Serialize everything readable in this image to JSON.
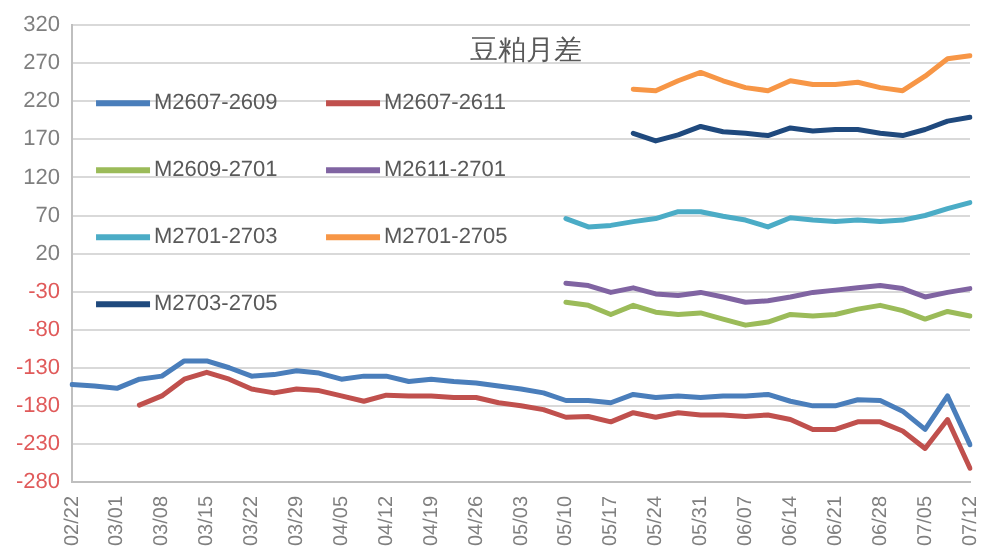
{
  "chart_data": {
    "type": "line",
    "title": "豆粕月差",
    "categories": [
      "02/22",
      null,
      "03/01",
      null,
      "03/08",
      null,
      "03/15",
      null,
      "03/22",
      null,
      "03/29",
      null,
      "04/05",
      null,
      "04/12",
      null,
      "04/19",
      null,
      "04/26",
      null,
      "05/03",
      null,
      "05/10",
      null,
      "05/17",
      null,
      "05/24",
      null,
      "05/31",
      null,
      "06/07",
      null,
      "06/14",
      null,
      "06/21",
      null,
      "06/28",
      null,
      "07/05",
      null,
      "07/12"
    ],
    "series": [
      {
        "name": "M2607-2609",
        "color": "#4a7ebb",
        "values": [
          -152,
          -154,
          -157,
          -145,
          -141,
          -121,
          -121,
          -130,
          -141,
          -139,
          -134,
          -137,
          -145,
          -141,
          -141,
          -148,
          -145,
          -148,
          -150,
          -154,
          -158,
          -163,
          -173,
          -173,
          -176,
          -165,
          -169,
          -167,
          -169,
          -167,
          -167,
          -165,
          -174,
          -180,
          -180,
          -172,
          -173,
          -187,
          -211,
          -167,
          -231
        ]
      },
      {
        "name": "M2607-2611",
        "color": "#c0504d",
        "values": [
          null,
          null,
          null,
          -179,
          -167,
          -145,
          -136,
          -145,
          -158,
          -163,
          -158,
          -160,
          -167,
          -174,
          -166,
          -167,
          -167,
          -169,
          -169,
          -176,
          -180,
          -185,
          -195,
          -194,
          -201,
          -189,
          -195,
          -189,
          -192,
          -192,
          -194,
          -192,
          -198,
          -211,
          -211,
          -201,
          -201,
          -213,
          -236,
          -198,
          -262
        ]
      },
      {
        "name": "M2609-2701",
        "color": "#9bbb59",
        "values": [
          null,
          null,
          null,
          null,
          null,
          null,
          null,
          null,
          null,
          null,
          null,
          null,
          null,
          null,
          null,
          null,
          null,
          null,
          null,
          null,
          null,
          null,
          -44,
          -48,
          -60,
          -48,
          -57,
          -60,
          -58,
          -66,
          -74,
          -70,
          -60,
          -62,
          -60,
          -53,
          -48,
          -55,
          -66,
          -56,
          -62
        ]
      },
      {
        "name": "M2611-2701",
        "color": "#8064a2",
        "values": [
          null,
          null,
          null,
          null,
          null,
          null,
          null,
          null,
          null,
          null,
          null,
          null,
          null,
          null,
          null,
          null,
          null,
          null,
          null,
          null,
          null,
          null,
          -19,
          -22,
          -31,
          -25,
          -33,
          -35,
          -31,
          -37,
          -44,
          -42,
          -37,
          -31,
          -28,
          -25,
          -22,
          -26,
          -37,
          -31,
          -26
        ]
      },
      {
        "name": "M2701-2703",
        "color": "#4bacc6",
        "values": [
          null,
          null,
          null,
          null,
          null,
          null,
          null,
          null,
          null,
          null,
          null,
          null,
          null,
          null,
          null,
          null,
          null,
          null,
          null,
          null,
          null,
          null,
          66,
          55,
          57,
          62,
          66,
          75,
          75,
          69,
          64,
          55,
          67,
          64,
          62,
          64,
          62,
          64,
          70,
          79,
          87
        ]
      },
      {
        "name": "M2701-2705",
        "color": "#f79646",
        "values": [
          null,
          null,
          null,
          null,
          null,
          null,
          null,
          null,
          null,
          null,
          null,
          null,
          null,
          null,
          null,
          null,
          null,
          null,
          null,
          null,
          null,
          null,
          null,
          null,
          null,
          236,
          234,
          247,
          258,
          247,
          238,
          234,
          247,
          242,
          242,
          245,
          238,
          234,
          253,
          276,
          280
        ]
      },
      {
        "name": "M2703-2705",
        "color": "#1f497d",
        "values": [
          null,
          null,
          null,
          null,
          null,
          null,
          null,
          null,
          null,
          null,
          null,
          null,
          null,
          null,
          null,
          null,
          null,
          null,
          null,
          null,
          null,
          null,
          null,
          null,
          null,
          178,
          168,
          176,
          187,
          180,
          178,
          175,
          185,
          181,
          183,
          183,
          178,
          175,
          183,
          194,
          199
        ]
      }
    ],
    "ylim": [
      -280,
      320
    ],
    "yticks": [
      -280,
      -230,
      -180,
      -130,
      -80,
      -30,
      20,
      70,
      120,
      170,
      220,
      270,
      320
    ],
    "grid": "y",
    "legend": "top left",
    "marker": "none",
    "line_style": "solid"
  }
}
